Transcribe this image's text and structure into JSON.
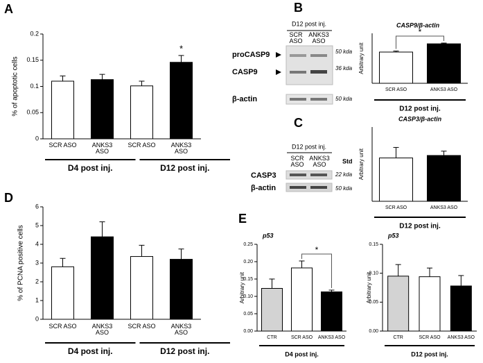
{
  "panel_labels": [
    "A",
    "B",
    "C",
    "D",
    "E"
  ],
  "blots": [
    {
      "header": "D12 post inj.",
      "lanes": [
        "SCR ASO",
        "ANKS3 ASO"
      ],
      "bands": [
        "proCASP9",
        "CASP9",
        "β-actin"
      ],
      "markers": [
        "50 kda",
        "36 kda",
        "50 kda"
      ]
    },
    {
      "header": "D12 post inj.",
      "lanes": [
        "SCR ASO",
        "ANKS3 ASO"
      ],
      "extra_lane": "Std",
      "bands": [
        "CASP3",
        "β-actin"
      ],
      "markers": [
        "22 kda",
        "50 kda"
      ]
    }
  ],
  "chart_data": [
    {
      "type": "bar",
      "ylabel": "% of apoptotic cells",
      "categories": [
        "SCR ASO",
        "ANKS3 ASO",
        "SCR ASO",
        "ANKS3 ASO"
      ],
      "values": [
        0.11,
        0.113,
        0.101,
        0.146
      ],
      "errors": [
        0.01,
        0.01,
        0.009,
        0.013
      ],
      "colors": [
        "#ffffff",
        "#000000",
        "#ffffff",
        "#000000"
      ],
      "groups": [
        "D4 post inj.",
        "D12 post inj."
      ],
      "annotation": "*",
      "ylim": [
        0,
        0.2
      ],
      "yticks": [
        0,
        0.05,
        0.1,
        0.15,
        0.2
      ]
    },
    {
      "type": "bar",
      "title": "CASP9/β-actin",
      "ylabel": "Arbitrary unit",
      "categories": [
        "SCR ASO",
        "ANKS3 ASO"
      ],
      "values": [
        1.25,
        1.58
      ],
      "errors": [
        0.04,
        0.03
      ],
      "colors": [
        "#ffffff",
        "#000000"
      ],
      "groups": [
        "D12 post inj."
      ],
      "annotation": "*",
      "ylim": [
        0,
        2
      ]
    },
    {
      "type": "bar",
      "title": "CASP3/β-actin",
      "ylabel": "Arbitrary unit",
      "categories": [
        "SCR ASO",
        "ANKS3 ASO"
      ],
      "values": [
        0.7,
        0.74
      ],
      "errors": [
        0.17,
        0.07
      ],
      "colors": [
        "#ffffff",
        "#000000"
      ],
      "groups": [
        "D12 post inj."
      ],
      "ylim": [
        0,
        1.2
      ]
    },
    {
      "type": "bar",
      "ylabel": "% of PCNA positive cells",
      "categories": [
        "SCR ASO",
        "ANKS3 ASO",
        "SCR ASO",
        "ANKS3 ASO"
      ],
      "values": [
        2.8,
        4.4,
        3.35,
        3.2
      ],
      "errors": [
        0.45,
        0.8,
        0.6,
        0.55
      ],
      "colors": [
        "#ffffff",
        "#000000",
        "#ffffff",
        "#000000"
      ],
      "groups": [
        "D4 post inj.",
        "D12 post inj."
      ],
      "ylim": [
        0,
        6
      ],
      "yticks": [
        0,
        1,
        2,
        3,
        4,
        5,
        6
      ]
    },
    {
      "type": "bar",
      "title": "p53",
      "ylabel": "Arbitrary unit",
      "categories": [
        "CTR",
        "SCR ASO",
        "ANKS3 ASO"
      ],
      "values": [
        0.123,
        0.182,
        0.113
      ],
      "errors": [
        0.027,
        0.02,
        0.005
      ],
      "colors": [
        "#d3d3d3",
        "#ffffff",
        "#000000"
      ],
      "groups": [
        "D4 post inj."
      ],
      "annotation": "*",
      "ylim": [
        0,
        0.25
      ],
      "yticks": [
        {
          "value": 0,
          "label": "0.00"
        },
        {
          "value": 0.05,
          "label": "0.05"
        },
        {
          "value": 0.1,
          "label": "0.10"
        },
        {
          "value": 0.15,
          "label": "0.15"
        },
        {
          "value": 0.2,
          "label": "0.20"
        },
        {
          "value": 0.25,
          "label": "0.25"
        }
      ]
    },
    {
      "type": "bar",
      "title": "p53",
      "ylabel": "Arbitrary unit",
      "categories": [
        "CTR",
        "SCR ASO",
        "ANKS3 ASO"
      ],
      "values": [
        0.095,
        0.094,
        0.078
      ],
      "errors": [
        0.02,
        0.015,
        0.018
      ],
      "colors": [
        "#d3d3d3",
        "#ffffff",
        "#000000"
      ],
      "groups": [
        "D12 post inj."
      ],
      "ylim": [
        0,
        0.15
      ],
      "yticks": [
        {
          "value": 0,
          "label": "0.00"
        },
        {
          "value": 0.05,
          "label": "0.05"
        },
        {
          "value": 0.1,
          "label": "0.10"
        },
        {
          "value": 0.15,
          "label": "0.15"
        }
      ]
    }
  ]
}
